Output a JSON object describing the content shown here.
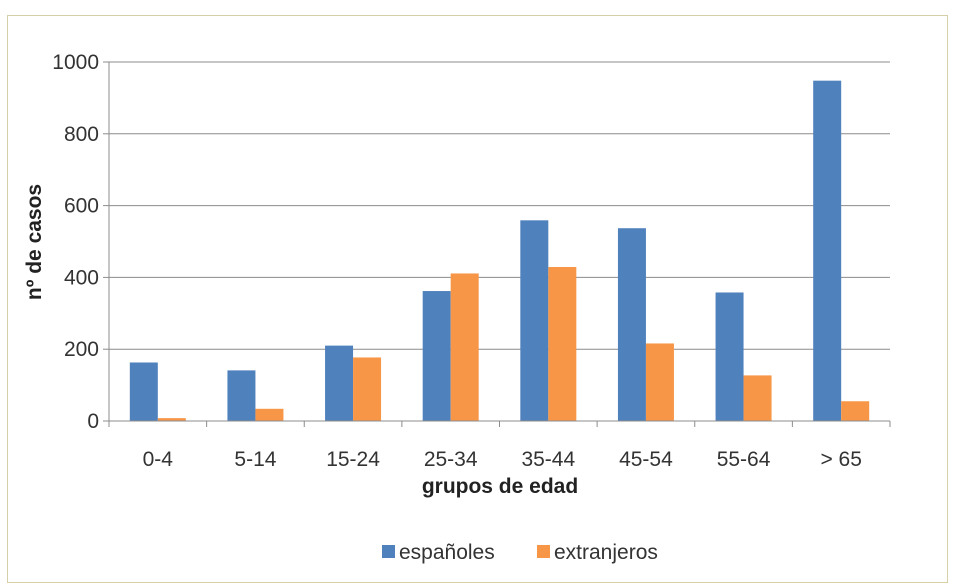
{
  "chart_data": {
    "type": "bar",
    "title": "",
    "xlabel": "grupos de edad",
    "ylabel": "nº de casos",
    "ylim": [
      0,
      1000
    ],
    "yticks": [
      0,
      200,
      400,
      600,
      800,
      1000
    ],
    "grid": true,
    "legend_position": "bottom",
    "categories": [
      "0-4",
      "5-14",
      "15-24",
      "25-34",
      "35-44",
      "45-54",
      "55-64",
      "> 65"
    ],
    "series": [
      {
        "name": "españoles",
        "color": "#4f81bd",
        "values": [
          163,
          141,
          210,
          362,
          559,
          537,
          358,
          948
        ]
      },
      {
        "name": "extranjeros",
        "color": "#f79646",
        "values": [
          8,
          34,
          177,
          411,
          429,
          216,
          127,
          55
        ]
      }
    ]
  }
}
